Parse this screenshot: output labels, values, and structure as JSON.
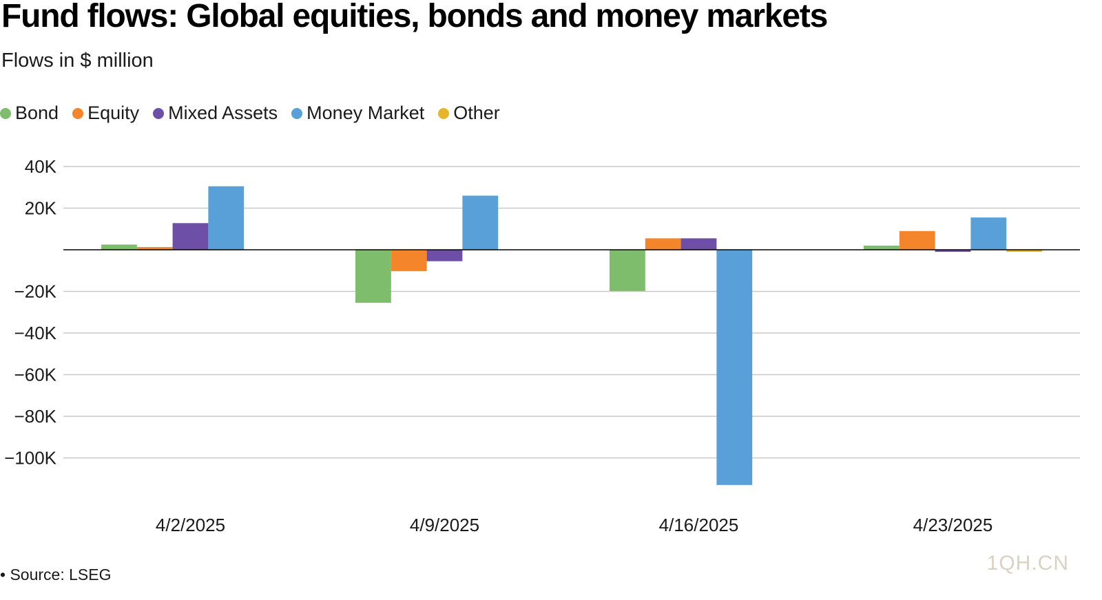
{
  "header": {
    "title": "Fund flows: Global equities, bonds and money markets",
    "subtitle": "Flows in $ million"
  },
  "footer": {
    "source": "• Source: LSEG",
    "watermark": "1QH.CN"
  },
  "colors": {
    "Bond": "#7dbd6b",
    "Equity": "#f5852a",
    "Mixed Assets": "#6d4fa8",
    "Money Market": "#58a0d7",
    "Other": "#e7b52c",
    "grid": "#c8c8c8",
    "baseline": "#000000"
  },
  "chart_data": {
    "type": "bar",
    "title": "Fund flows: Global equities, bonds and money markets",
    "subtitle": "Flows in $ million",
    "xlabel": "",
    "ylabel": "",
    "categories": [
      "4/2/2025",
      "4/9/2025",
      "4/16/2025",
      "4/23/2025"
    ],
    "series": [
      {
        "name": "Bond",
        "values": [
          2500,
          -25500,
          -19800,
          2000
        ]
      },
      {
        "name": "Equity",
        "values": [
          1300,
          -10300,
          5500,
          9000
        ]
      },
      {
        "name": "Mixed Assets",
        "values": [
          12800,
          -5500,
          5500,
          -1000
        ]
      },
      {
        "name": "Money Market",
        "values": [
          30500,
          26000,
          -113000,
          15500
        ]
      },
      {
        "name": "Other",
        "values": [
          0,
          0,
          0,
          -1000
        ]
      }
    ],
    "yticks": [
      40000,
      20000,
      -20000,
      -40000,
      -60000,
      -80000,
      -100000
    ],
    "ytick_labels": [
      "40K",
      "20K",
      "−20K",
      "−40K",
      "−60K",
      "−80K",
      "−100K"
    ],
    "ylim": [
      -116000,
      48000
    ],
    "grid": true,
    "legend_position": "top-left"
  }
}
